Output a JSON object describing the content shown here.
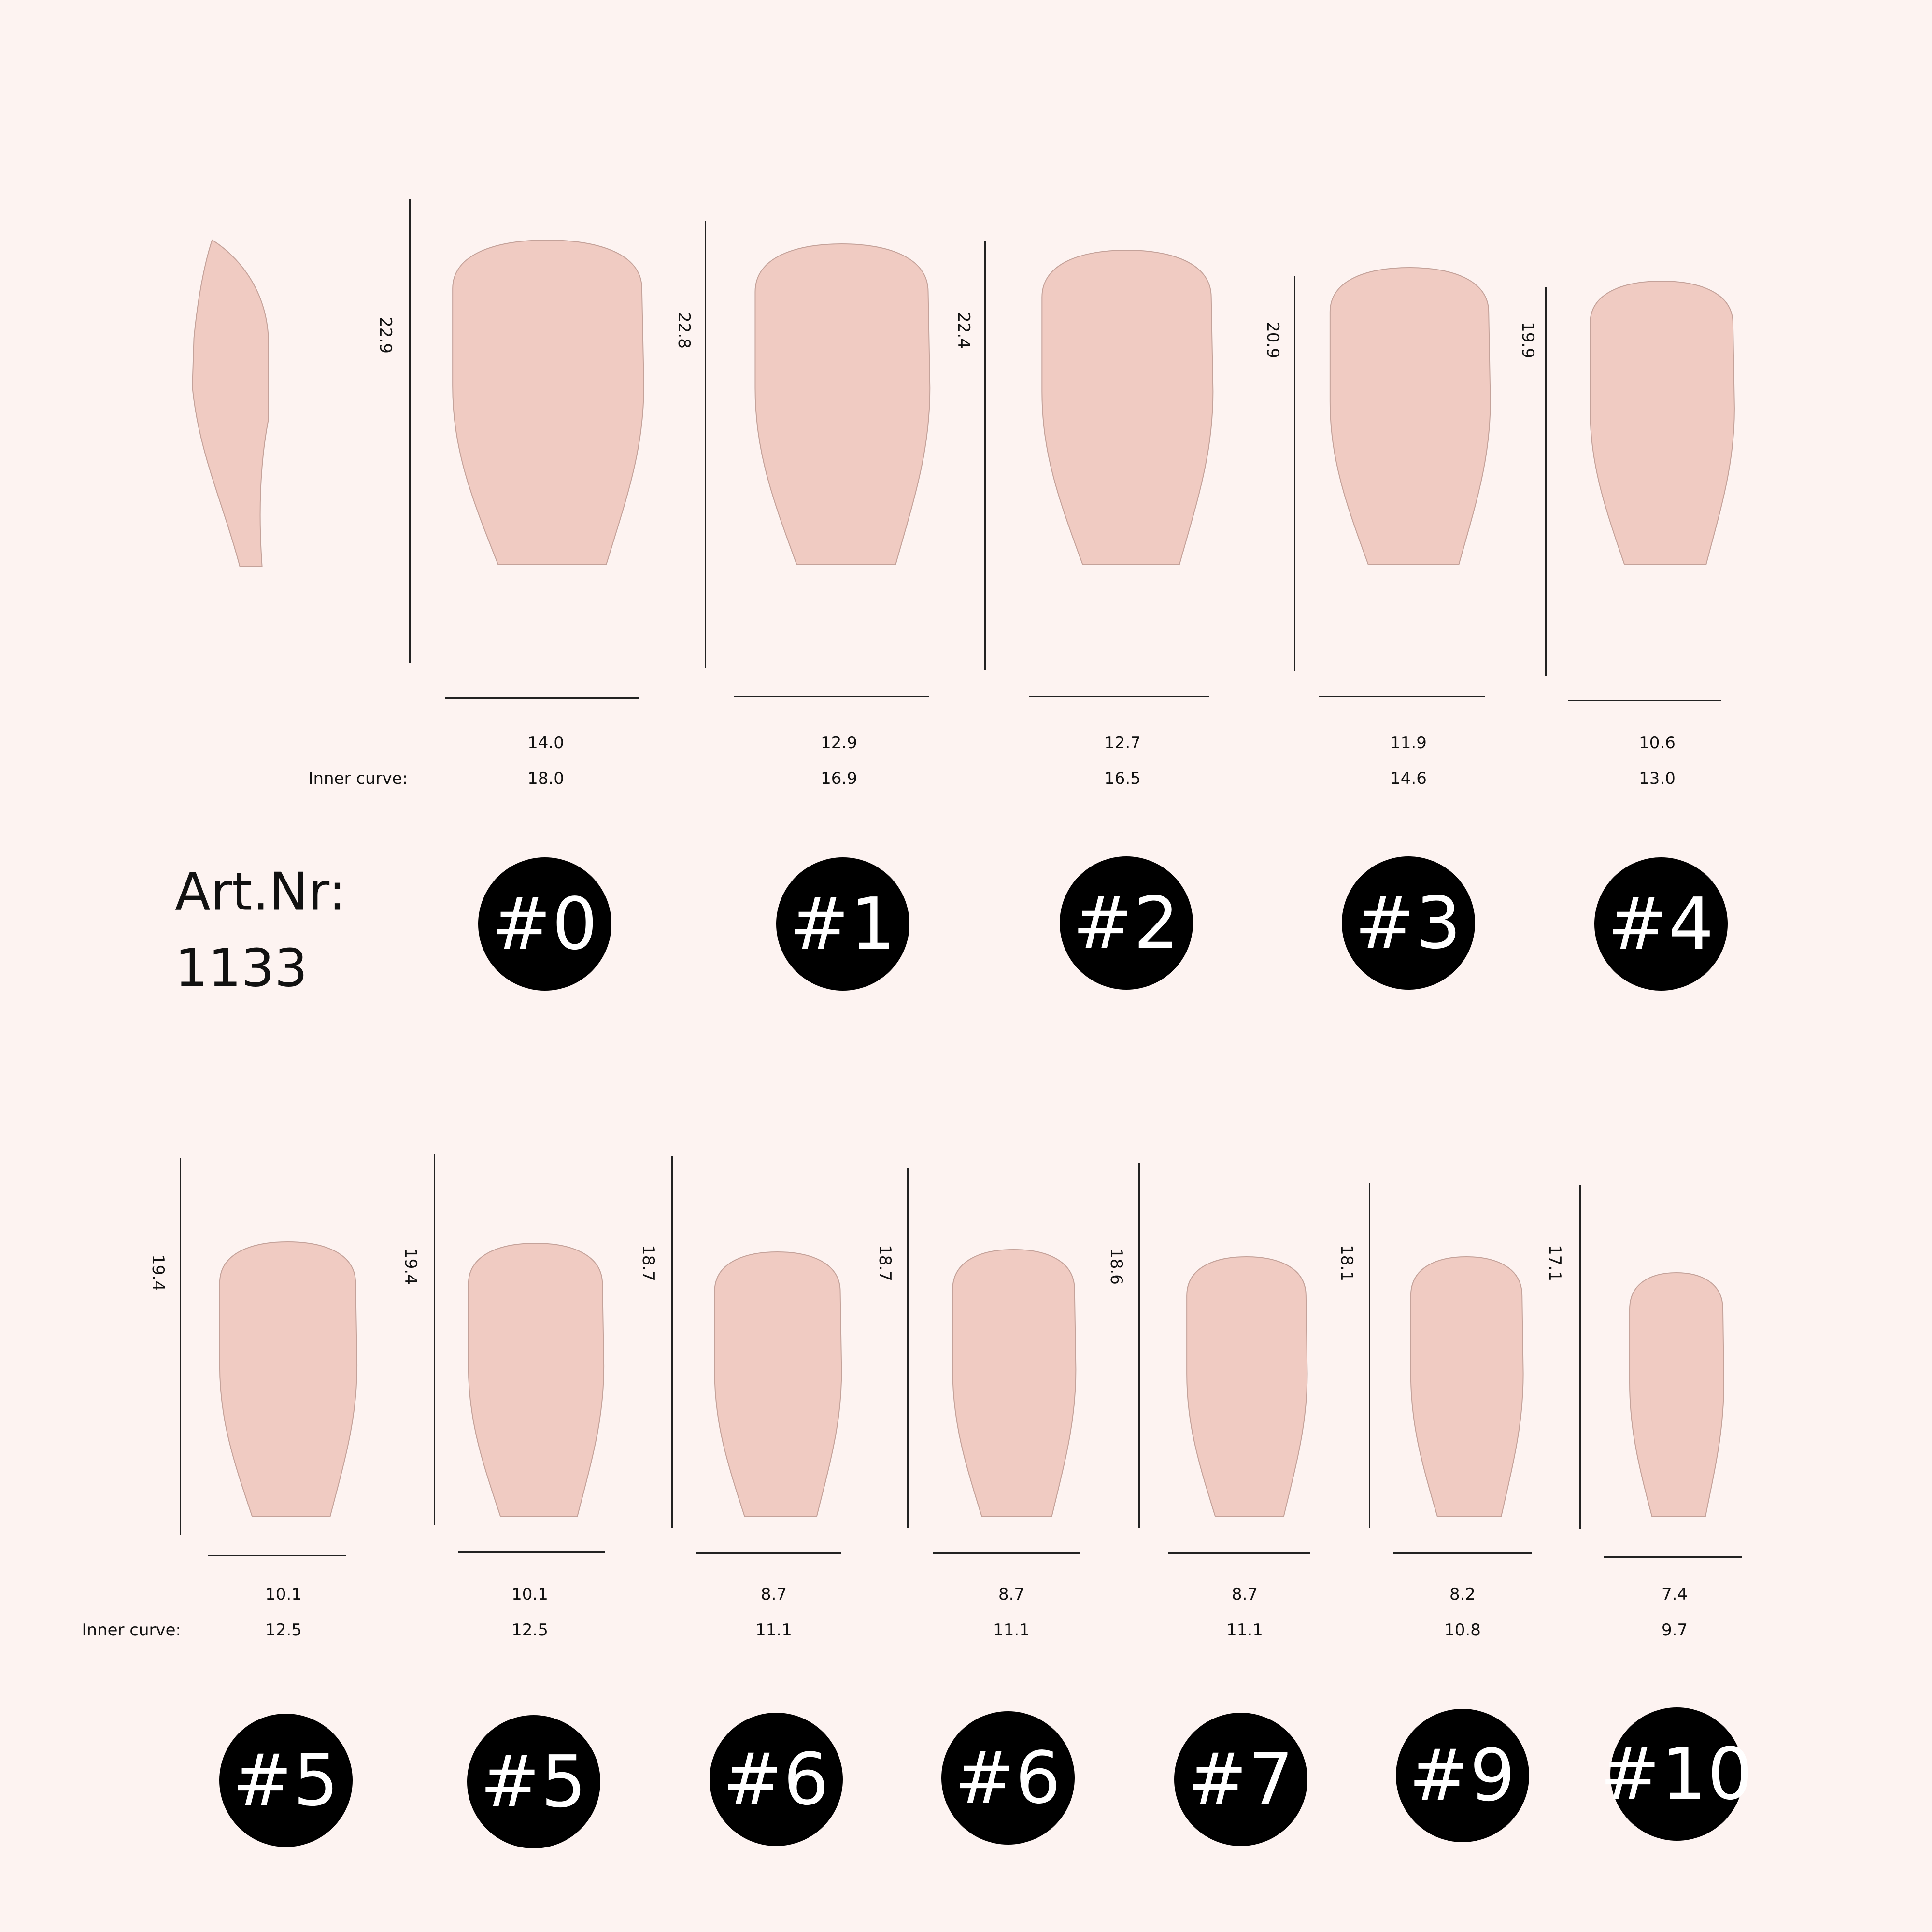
{
  "article": {
    "label": "Art.Nr:",
    "number": "1133"
  },
  "inner_curve_label": "Inner curve:",
  "colors": {
    "background": "#fdf3f1",
    "nail_fill": "#f0cbc2",
    "nail_stroke": "#c4a29a",
    "badge": "#000000",
    "badge_text": "#ffffff"
  },
  "top_row": [
    {
      "size": "#0",
      "length": "22.9",
      "width": "14.0",
      "inner_curve": "18.0"
    },
    {
      "size": "#1",
      "length": "22.8",
      "width": "12.9",
      "inner_curve": "16.9"
    },
    {
      "size": "#2",
      "length": "22.4",
      "width": "12.7",
      "inner_curve": "16.5"
    },
    {
      "size": "#3",
      "length": "20.9",
      "width": "11.9",
      "inner_curve": "14.6"
    },
    {
      "size": "#4",
      "length": "19.9",
      "width": "10.6",
      "inner_curve": "13.0"
    }
  ],
  "bottom_row": [
    {
      "size": "#5",
      "length": "19.4",
      "width": "10.1",
      "inner_curve": "12.5"
    },
    {
      "size": "#5",
      "length": "19.4",
      "width": "10.1",
      "inner_curve": "12.5"
    },
    {
      "size": "#6",
      "length": "18.7",
      "width": "8.7",
      "inner_curve": "11.1"
    },
    {
      "size": "#6",
      "length": "18.7",
      "width": "8.7",
      "inner_curve": "11.1"
    },
    {
      "size": "#7",
      "length": "18.6",
      "width": "8.7",
      "inner_curve": "11.1"
    },
    {
      "size": "#9",
      "length": "18.1",
      "width": "8.2",
      "inner_curve": "10.8"
    },
    {
      "size": "#10",
      "length": "17.1",
      "width": "7.4",
      "inner_curve": "9.7"
    }
  ]
}
